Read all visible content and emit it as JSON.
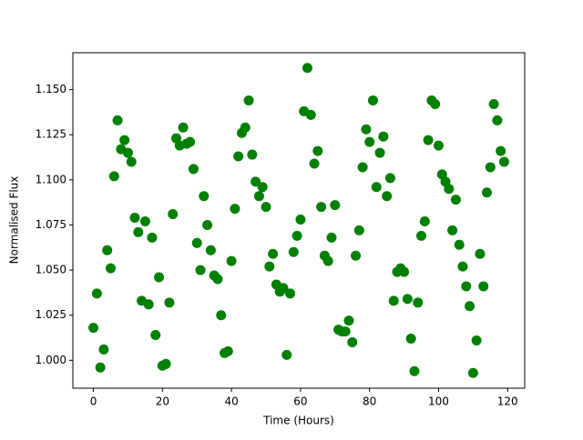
{
  "chart_data": {
    "type": "scatter",
    "color": "#008000",
    "xlabel": "Time (Hours)",
    "ylabel": "Normalised Flux",
    "x": [
      0,
      1,
      2,
      3,
      4,
      5,
      6,
      7,
      8,
      9,
      10,
      11,
      12,
      13,
      14,
      15,
      16,
      17,
      18,
      19,
      20,
      21,
      22,
      23,
      24,
      25,
      26,
      27,
      28,
      29,
      30,
      31,
      32,
      33,
      34,
      35,
      36,
      37,
      38,
      39,
      40,
      41,
      42,
      43,
      44,
      45,
      46,
      47,
      48,
      49,
      50,
      51,
      52,
      53,
      54,
      55,
      56,
      57,
      58,
      59,
      60,
      61,
      62,
      63,
      64,
      65,
      66,
      67,
      68,
      69,
      70,
      71,
      72,
      73,
      74,
      75,
      76,
      77,
      78,
      79,
      80,
      81,
      82,
      83,
      84,
      85,
      86,
      87,
      88,
      89,
      90,
      91,
      92,
      93,
      94,
      95,
      96,
      97,
      98,
      99,
      100,
      101,
      102,
      103,
      104,
      105,
      106,
      107,
      108,
      109,
      110,
      111,
      112,
      113,
      114,
      115,
      116,
      117,
      118,
      119
    ],
    "y": [
      1.018,
      1.037,
      0.996,
      1.006,
      1.061,
      1.051,
      1.102,
      1.133,
      1.117,
      1.122,
      1.115,
      1.11,
      1.079,
      1.071,
      1.033,
      1.077,
      1.031,
      1.068,
      1.014,
      1.046,
      0.997,
      0.998,
      1.032,
      1.081,
      1.123,
      1.119,
      1.129,
      1.12,
      1.121,
      1.106,
      1.065,
      1.05,
      1.091,
      1.075,
      1.061,
      1.047,
      1.045,
      1.025,
      1.004,
      1.005,
      1.055,
      1.084,
      1.113,
      1.126,
      1.129,
      1.144,
      1.114,
      1.099,
      1.091,
      1.096,
      1.085,
      1.052,
      1.059,
      1.042,
      1.038,
      1.04,
      1.003,
      1.037,
      1.06,
      1.069,
      1.078,
      1.138,
      1.162,
      1.136,
      1.109,
      1.116,
      1.085,
      1.058,
      1.055,
      1.068,
      1.086,
      1.017,
      1.016,
      1.016,
      1.022,
      1.01,
      1.058,
      1.072,
      1.107,
      1.128,
      1.121,
      1.144,
      1.096,
      1.115,
      1.124,
      1.091,
      1.101,
      1.033,
      1.049,
      1.051,
      1.049,
      1.034,
      1.012,
      0.994,
      1.032,
      1.069,
      1.077,
      1.122,
      1.144,
      1.142,
      1.119,
      1.103,
      1.099,
      1.095,
      1.072,
      1.089,
      1.064,
      1.052,
      1.041,
      1.03,
      0.993,
      1.011,
      1.059,
      1.041,
      1.093,
      1.107,
      1.142,
      1.133,
      1.116,
      1.11
    ],
    "xlim": [
      -5.95,
      124.95
    ],
    "xticks": [
      0,
      20,
      40,
      60,
      80,
      100,
      120
    ],
    "ylim": [
      0.98455,
      1.17045
    ],
    "yticks": [
      {
        "value": 1.0,
        "label": "1.000"
      },
      {
        "value": 1.025,
        "label": "1.025"
      },
      {
        "value": 1.05,
        "label": "1.050"
      },
      {
        "value": 1.075,
        "label": "1.075"
      },
      {
        "value": 1.1,
        "label": "1.100"
      },
      {
        "value": 1.125,
        "label": "1.125"
      },
      {
        "value": 1.15,
        "label": "1.150"
      }
    ]
  }
}
